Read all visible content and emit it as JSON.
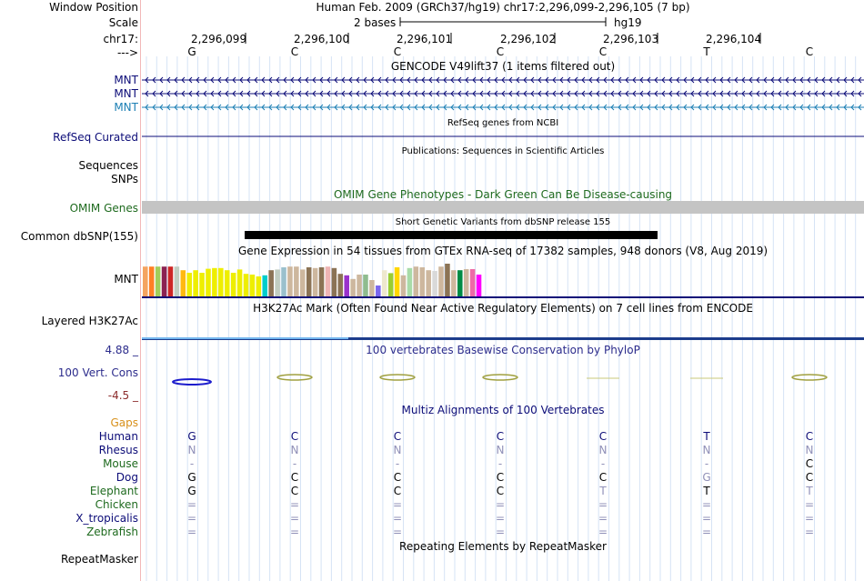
{
  "header": {
    "window_position_label": "Window Position",
    "assembly_text": "Human Feb. 2009 (GRCh37/hg19)   chr17:2,296,099-2,296,105 (7 bp)",
    "scale_label": "Scale",
    "scale_text": "2 bases",
    "scale_assembly": "hg19",
    "chrom_label": "chr17:",
    "coords": [
      "2,296,099",
      "2,296,100",
      "2,296,101",
      "2,296,102",
      "2,296,103",
      "2,296,104"
    ],
    "strand_label": "--->",
    "bases": [
      "G",
      "C",
      "C",
      "C",
      "C",
      "T",
      "C"
    ]
  },
  "gencode": {
    "title": "GENCODE V49lift37 (1 items filtered out)",
    "genes": [
      {
        "name": "MNT",
        "color": "#0c0c78"
      },
      {
        "name": "MNT",
        "color": "#0c0c78"
      },
      {
        "name": "MNT",
        "color": "#1c7fb4"
      }
    ]
  },
  "refseq": {
    "title": "RefSeq genes from NCBI",
    "label": "RefSeq Curated",
    "color": "#0c0c78"
  },
  "publications": {
    "title": "Publications: Sequences in Scientific Articles",
    "labels": [
      "Sequences",
      "SNPs"
    ]
  },
  "omim": {
    "title": "OMIM Gene Phenotypes - Dark Green Can Be Disease-causing",
    "label": "OMIM Genes",
    "color": "#1e6a1e"
  },
  "dbsnp": {
    "title": "Short Genetic Variants from dbSNP release 155",
    "label": "Common dbSNP(155)"
  },
  "gtex": {
    "title": "Gene Expression in 54 tissues from GTEx RNA-seq of 17382 samples, 948 donors (V8, Aug 2019)",
    "gene_label": "MNT",
    "tissues": [
      {
        "color": "#f4a460",
        "v": 0.82
      },
      {
        "color": "#ff7f24",
        "v": 0.82
      },
      {
        "color": "#a2cd5a",
        "v": 0.82
      },
      {
        "color": "#8b2252",
        "v": 0.82
      },
      {
        "color": "#cd2626",
        "v": 0.82
      },
      {
        "color": "#c1cdc1",
        "v": 0.82
      },
      {
        "color": "#ffb90f",
        "v": 0.72
      },
      {
        "color": "#eeee00",
        "v": 0.65
      },
      {
        "color": "#eeee00",
        "v": 0.72
      },
      {
        "color": "#eeee00",
        "v": 0.65
      },
      {
        "color": "#eeee00",
        "v": 0.76
      },
      {
        "color": "#eeee00",
        "v": 0.78
      },
      {
        "color": "#eeee00",
        "v": 0.78
      },
      {
        "color": "#eeee00",
        "v": 0.72
      },
      {
        "color": "#eeee00",
        "v": 0.65
      },
      {
        "color": "#eeee00",
        "v": 0.74
      },
      {
        "color": "#eeee00",
        "v": 0.62
      },
      {
        "color": "#eeee00",
        "v": 0.6
      },
      {
        "color": "#eeee00",
        "v": 0.55
      },
      {
        "color": "#00cdcd",
        "v": 0.58
      },
      {
        "color": "#8b7355",
        "v": 0.72
      },
      {
        "color": "#c1cdc1",
        "v": 0.74
      },
      {
        "color": "#9ac0cd",
        "v": 0.8
      },
      {
        "color": "#cdb79e",
        "v": 0.82
      },
      {
        "color": "#cdb79e",
        "v": 0.82
      },
      {
        "color": "#cdb79e",
        "v": 0.74
      },
      {
        "color": "#8b7355",
        "v": 0.8
      },
      {
        "color": "#cdb79e",
        "v": 0.78
      },
      {
        "color": "#8b7355",
        "v": 0.8
      },
      {
        "color": "#eeb4b4",
        "v": 0.82
      },
      {
        "color": "#8b7355",
        "v": 0.78
      },
      {
        "color": "#8b7355",
        "v": 0.62
      },
      {
        "color": "#9932cc",
        "v": 0.58
      },
      {
        "color": "#cdb79e",
        "v": 0.48
      },
      {
        "color": "#cdb79e",
        "v": 0.6
      },
      {
        "color": "#8fbc8f",
        "v": 0.6
      },
      {
        "color": "#cdb79e",
        "v": 0.45
      },
      {
        "color": "#7a67ee",
        "v": 0.3
      },
      {
        "color": "#eee8cd",
        "v": 0.72
      },
      {
        "color": "#9acd32",
        "v": 0.64
      },
      {
        "color": "#ffd700",
        "v": 0.8
      },
      {
        "color": "#cdb79e",
        "v": 0.58
      },
      {
        "color": "#a8dba8",
        "v": 0.78
      },
      {
        "color": "#cdb79e",
        "v": 0.82
      },
      {
        "color": "#cdb79e",
        "v": 0.8
      },
      {
        "color": "#cdb79e",
        "v": 0.72
      },
      {
        "color": "#d9d9d9",
        "v": 0.7
      },
      {
        "color": "#cdb79e",
        "v": 0.82
      },
      {
        "color": "#8b7355",
        "v": 0.9
      },
      {
        "color": "#cdb79e",
        "v": 0.72
      },
      {
        "color": "#008b45",
        "v": 0.72
      },
      {
        "color": "#cdb79e",
        "v": 0.75
      },
      {
        "color": "#ee6aa7",
        "v": 0.75
      },
      {
        "color": "#ff00ff",
        "v": 0.6
      }
    ]
  },
  "h3k27ac": {
    "title": "H3K27Ac Mark (Often Found Near Active Regulatory Elements) on 7 cell lines from ENCODE",
    "label": "Layered H3K27Ac"
  },
  "phylop": {
    "title": "100 vertebrates Basewise Conservation by PhyloP",
    "label": "100 Vert. Cons",
    "max": "4.88 _",
    "min": "-4.5 _",
    "range": [
      -4.5,
      4.88
    ],
    "scores": [
      -0.9,
      0.55,
      1.1,
      0.6,
      0,
      0,
      0.3
    ]
  },
  "multiz": {
    "title": "Multiz Alignments of 100 Vertebrates",
    "gaps_label": "Gaps",
    "species": [
      {
        "name": "Human",
        "color": "#0c0c78",
        "bases": [
          "G",
          "C",
          "C",
          "C",
          "C",
          "T",
          "C"
        ]
      },
      {
        "name": "Rhesus",
        "color": "#0c0c78",
        "bases": [
          "N",
          "N",
          "N",
          "N",
          "N",
          "N",
          "N"
        ]
      },
      {
        "name": "Mouse",
        "color": "#1e6a1e",
        "bases": [
          "-",
          "-",
          "-",
          "-",
          "-",
          "-",
          "C"
        ]
      },
      {
        "name": "Dog",
        "color": "#0c0c78",
        "bases": [
          "G",
          "C",
          "C",
          "C",
          "C",
          "G",
          "C"
        ]
      },
      {
        "name": "Elephant",
        "color": "#1e6a1e",
        "bases": [
          "G",
          "C",
          "C",
          "C",
          "T",
          "T",
          "T"
        ]
      },
      {
        "name": "Chicken",
        "color": "#1e6a1e",
        "bases": [
          "=",
          "=",
          "=",
          "=",
          "=",
          "=",
          "="
        ]
      },
      {
        "name": "X_tropicalis",
        "color": "#0c0c78",
        "bases": [
          "=",
          "=",
          "=",
          "=",
          "=",
          "=",
          "="
        ]
      },
      {
        "name": "Zebrafish",
        "color": "#1e6a1e",
        "bases": [
          "=",
          "=",
          "=",
          "=",
          "=",
          "=",
          "="
        ]
      }
    ]
  },
  "repeatmasker": {
    "title": "Repeating Elements by RepeatMasker",
    "label": "RepeatMasker"
  }
}
